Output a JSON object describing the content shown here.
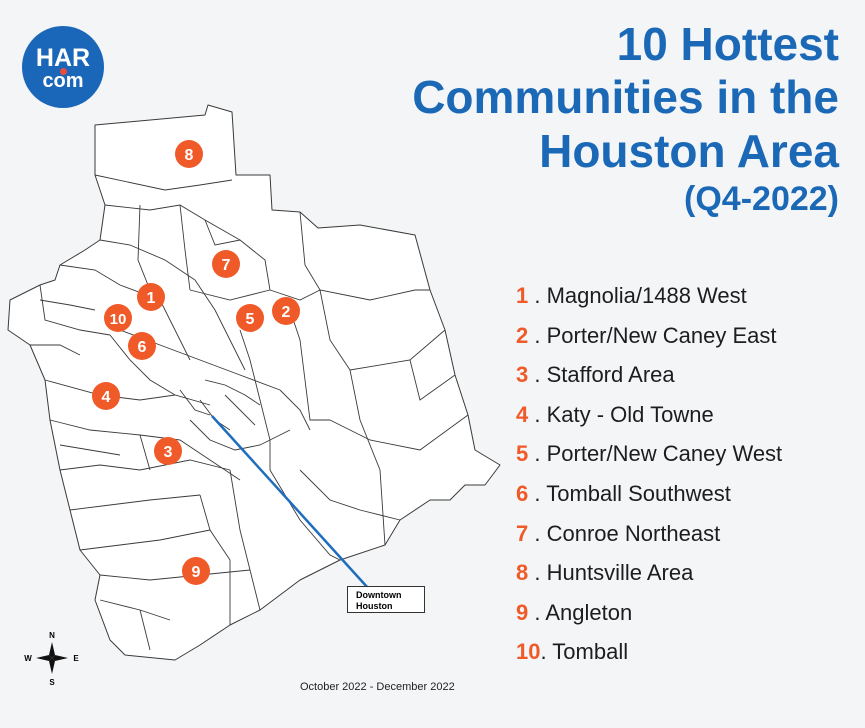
{
  "logo": {
    "line1": "HAR",
    "line2": "com"
  },
  "title": {
    "line1": "10 Hottest",
    "line2": "Communities in the",
    "line3": "Houston Area",
    "line4": "(Q4-2022)"
  },
  "colors": {
    "title_blue": "#1b69b6",
    "marker_orange": "#f05a28",
    "logo_blue": "#1a66b8",
    "boundary_gray": "#3a3a3a",
    "line_blue": "#1f6dbd"
  },
  "communities": [
    {
      "num": "1",
      "name": ". Magnolia/1488 West"
    },
    {
      "num": "2",
      "name": ". Porter/New Caney East"
    },
    {
      "num": "3",
      "name": ". Stafford Area"
    },
    {
      "num": "4",
      "name": ". Katy - Old Towne"
    },
    {
      "num": "5",
      "name": ". Porter/New Caney West"
    },
    {
      "num": "6",
      "name": ". Tomball Southwest"
    },
    {
      "num": "7",
      "name": ". Conroe Northeast"
    },
    {
      "num": "8",
      "name": ". Huntsville Area"
    },
    {
      "num": "9",
      "name": ". Angleton"
    },
    {
      "num": "10",
      "name": ". Tomball"
    }
  ],
  "downtown_label": {
    "line1": "Downtown",
    "line2": "Houston"
  },
  "compass": {
    "n": "N",
    "s": "S",
    "e": "E",
    "w": "W"
  },
  "footer": "October 2022 - December 2022"
}
